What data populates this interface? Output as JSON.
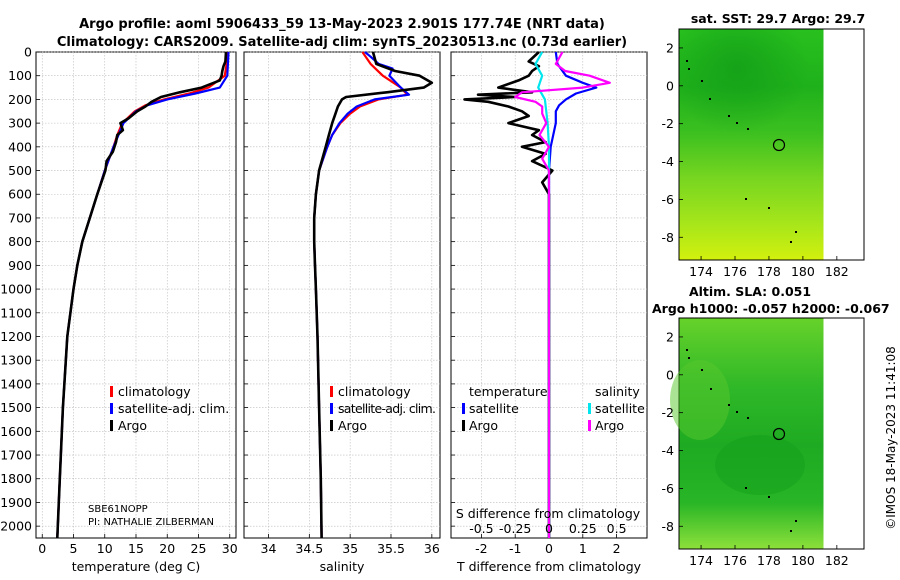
{
  "title": {
    "line1": "Argo profile: aoml 5906433_59 13-May-2023 2.901S 177.74E (NRT data)",
    "line2": "Climatology: CARS2009. Satellite-adj clim: synTS_20230513.nc (0.73d earlier)"
  },
  "colors": {
    "climatology": "#ff0000",
    "satellite_clim": "#0000ff",
    "argo": "#000000",
    "sat_diff": "#00e5ee",
    "argo_sdiff": "#ff00ff"
  },
  "shared_depth_ticks": [
    "0",
    "100",
    "200",
    "300",
    "400",
    "500",
    "600",
    "700",
    "800",
    "900",
    "1000",
    "1100",
    "1200",
    "1300",
    "1400",
    "1500",
    "1600",
    "1700",
    "1800",
    "1900",
    "2000"
  ],
  "info": {
    "sensor": "SBE61NOPP",
    "pi": "PI: NATHALIE ZILBERMAN"
  },
  "legend_main": [
    "climatology",
    "satellite-adj. clim.",
    "Argo"
  ],
  "legend_diff": {
    "temp_header": "temperature",
    "sal_header": "salinity",
    "temp_items": [
      "satellite",
      "Argo"
    ],
    "sal_items": [
      "satellite",
      "Argo"
    ]
  },
  "diff_top_axis": {
    "label": "S difference from climatology",
    "ticks": [
      "-0.5",
      "-0.25",
      "0",
      "0.25",
      "0.5"
    ]
  },
  "map_sst": {
    "title": "sat. SST: 29.7 Argo: 29.7",
    "yticks": [
      "2",
      "0",
      "-2",
      "-4",
      "-6",
      "-8"
    ],
    "xticks": [
      "174",
      "176",
      "178",
      "180",
      "182"
    ]
  },
  "map_sla": {
    "title1": "Altim. SLA: 0.051",
    "title2": "Argo h1000: -0.057 h2000: -0.067",
    "yticks": [
      "2",
      "0",
      "-2",
      "-4",
      "-6",
      "-8"
    ],
    "xticks": [
      "174",
      "176",
      "178",
      "180",
      "182"
    ]
  },
  "watermark": "©IMOS 18-May-2023 11:41:08",
  "chart_data": [
    {
      "type": "line",
      "title": "",
      "xlabel": "temperature (deg C)",
      "ylabel": "",
      "xlim": [
        -1,
        31
      ],
      "ylim": [
        2050,
        0
      ],
      "xticks": [
        "0",
        "5",
        "10",
        "15",
        "20",
        "25",
        "30"
      ],
      "series": [
        {
          "name": "climatology",
          "depth": [
            0,
            50,
            100,
            150,
            175,
            200,
            225,
            250,
            300,
            350,
            400,
            500,
            600,
            700,
            800,
            900,
            1000,
            1200,
            1500,
            1800,
            2050
          ],
          "values": [
            29.6,
            29.5,
            29.2,
            26.6,
            23.5,
            19.5,
            16.5,
            14.8,
            12.8,
            12.0,
            11.4,
            10.0,
            8.8,
            7.6,
            6.4,
            5.6,
            5.0,
            4.0,
            3.3,
            2.8,
            2.4
          ]
        },
        {
          "name": "satellite-adj. clim.",
          "depth": [
            0,
            50,
            100,
            150,
            175,
            200,
            225,
            250,
            300,
            350,
            400,
            500,
            600,
            700,
            800,
            900,
            1000,
            1200,
            1500,
            1800,
            2050
          ],
          "values": [
            29.8,
            29.7,
            29.6,
            28.4,
            24.5,
            20.0,
            16.8,
            15.0,
            13.0,
            12.2,
            11.4,
            10.0,
            8.8,
            7.6,
            6.4,
            5.6,
            5.0,
            4.0,
            3.3,
            2.8,
            2.4
          ]
        },
        {
          "name": "Argo",
          "depth": [
            0,
            40,
            60,
            80,
            100,
            120,
            150,
            170,
            190,
            210,
            230,
            250,
            280,
            300,
            330,
            350,
            380,
            420,
            460,
            500,
            600,
            700,
            800,
            900,
            1000,
            1200,
            1500,
            1800,
            2050
          ],
          "values": [
            29.4,
            29.3,
            29.0,
            28.8,
            28.7,
            28.4,
            25.5,
            22.0,
            19.0,
            17.5,
            16.5,
            15.2,
            13.8,
            12.5,
            12.9,
            12.0,
            11.8,
            11.3,
            10.3,
            10.1,
            8.8,
            7.6,
            6.4,
            5.6,
            5.0,
            4.0,
            3.3,
            2.8,
            2.4
          ]
        }
      ]
    },
    {
      "type": "line",
      "title": "",
      "xlabel": "salinity",
      "ylabel": "",
      "xlim": [
        33.7,
        36.1
      ],
      "ylim": [
        2050,
        0
      ],
      "xticks": [
        "34",
        "34.5",
        "35",
        "35.5",
        "36"
      ],
      "series": [
        {
          "name": "climatology",
          "depth": [
            0,
            50,
            100,
            150,
            180,
            200,
            230,
            260,
            300,
            350,
            400,
            500,
            600,
            700,
            800,
            900,
            1000,
            1200,
            1500,
            1800,
            2050
          ],
          "values": [
            35.15,
            35.25,
            35.4,
            35.62,
            35.7,
            35.35,
            35.12,
            35.0,
            34.88,
            34.78,
            34.72,
            34.62,
            34.58,
            34.56,
            34.56,
            34.57,
            34.58,
            34.6,
            34.62,
            34.64,
            34.65
          ]
        },
        {
          "name": "satellite-adj. clim.",
          "depth": [
            0,
            20,
            50,
            70,
            100,
            150,
            180,
            200,
            230,
            260,
            300,
            350,
            400,
            500,
            600,
            700,
            800,
            900,
            1000,
            1200,
            1500,
            1800,
            2050
          ],
          "values": [
            35.18,
            35.25,
            35.35,
            35.52,
            35.48,
            35.62,
            35.72,
            35.3,
            35.08,
            34.97,
            34.87,
            34.78,
            34.72,
            34.62,
            34.58,
            34.56,
            34.56,
            34.57,
            34.58,
            34.6,
            34.62,
            34.64,
            34.65
          ]
        },
        {
          "name": "Argo",
          "depth": [
            0,
            50,
            80,
            100,
            130,
            150,
            170,
            190,
            200,
            230,
            260,
            300,
            350,
            400,
            500,
            600,
            700,
            800,
            900,
            1000,
            1200,
            1500,
            1800,
            2050
          ],
          "values": [
            35.28,
            35.32,
            35.55,
            35.85,
            36.0,
            35.9,
            35.45,
            34.95,
            34.9,
            34.85,
            34.82,
            34.78,
            34.74,
            34.7,
            34.62,
            34.58,
            34.56,
            34.56,
            34.57,
            34.58,
            34.6,
            34.62,
            34.64,
            34.65
          ]
        }
      ]
    },
    {
      "type": "line",
      "title": "",
      "xlabel": "T difference from climatology",
      "ylabel": "",
      "xlim": [
        -2.9,
        2.9
      ],
      "ylim": [
        2050,
        0
      ],
      "xticks": [
        "-2",
        "-1",
        "0",
        "1",
        "2"
      ],
      "secondary_xlim": [
        -0.725,
        0.725
      ],
      "series": [
        {
          "name": "temperature satellite",
          "axis": "T",
          "depth": [
            0,
            50,
            100,
            130,
            150,
            175,
            200,
            225,
            250,
            300,
            400,
            500,
            600,
            700,
            800,
            1000,
            1500,
            2050
          ],
          "values": [
            0.2,
            0.25,
            0.5,
            1.0,
            1.4,
            0.8,
            0.5,
            0.3,
            0.2,
            0.2,
            0.05,
            0.0,
            0.0,
            0.0,
            0.0,
            0.0,
            0.0,
            0.0
          ]
        },
        {
          "name": "temperature Argo",
          "axis": "T",
          "depth": [
            0,
            40,
            60,
            80,
            100,
            120,
            150,
            170,
            180,
            190,
            200,
            210,
            230,
            250,
            270,
            300,
            330,
            350,
            380,
            400,
            430,
            460,
            500,
            550,
            600,
            700,
            800,
            1000,
            1500,
            2050
          ],
          "values": [
            -0.3,
            -0.6,
            -0.3,
            -0.5,
            -0.6,
            -0.9,
            -1.5,
            -0.5,
            -2.1,
            -1.0,
            -2.5,
            -1.8,
            -1.2,
            -0.8,
            -0.6,
            -1.2,
            -0.3,
            -0.5,
            -0.1,
            -0.8,
            -0.1,
            -0.5,
            0.1,
            -0.2,
            0.0,
            0.0,
            0.0,
            0.0,
            0.0,
            0.0
          ]
        },
        {
          "name": "salinity satellite",
          "axis": "S",
          "depth": [
            0,
            50,
            100,
            150,
            200,
            300,
            400,
            500,
            700,
            1000,
            1500,
            2050
          ],
          "values": [
            -0.05,
            -0.1,
            -0.05,
            -0.08,
            -0.03,
            -0.01,
            0.0,
            0.0,
            0.0,
            0.0,
            0.0,
            0.0
          ]
        },
        {
          "name": "salinity Argo",
          "axis": "S",
          "depth": [
            0,
            50,
            80,
            100,
            130,
            150,
            170,
            190,
            210,
            230,
            260,
            300,
            350,
            400,
            450,
            500,
            600,
            800,
            1000,
            1500,
            2050
          ],
          "values": [
            0.1,
            0.05,
            0.12,
            0.3,
            0.45,
            0.25,
            -0.2,
            -0.25,
            -0.1,
            -0.05,
            -0.05,
            -0.02,
            -0.07,
            0.0,
            -0.05,
            0.0,
            0.0,
            0.0,
            0.0,
            0.0,
            0.0
          ]
        }
      ]
    }
  ]
}
